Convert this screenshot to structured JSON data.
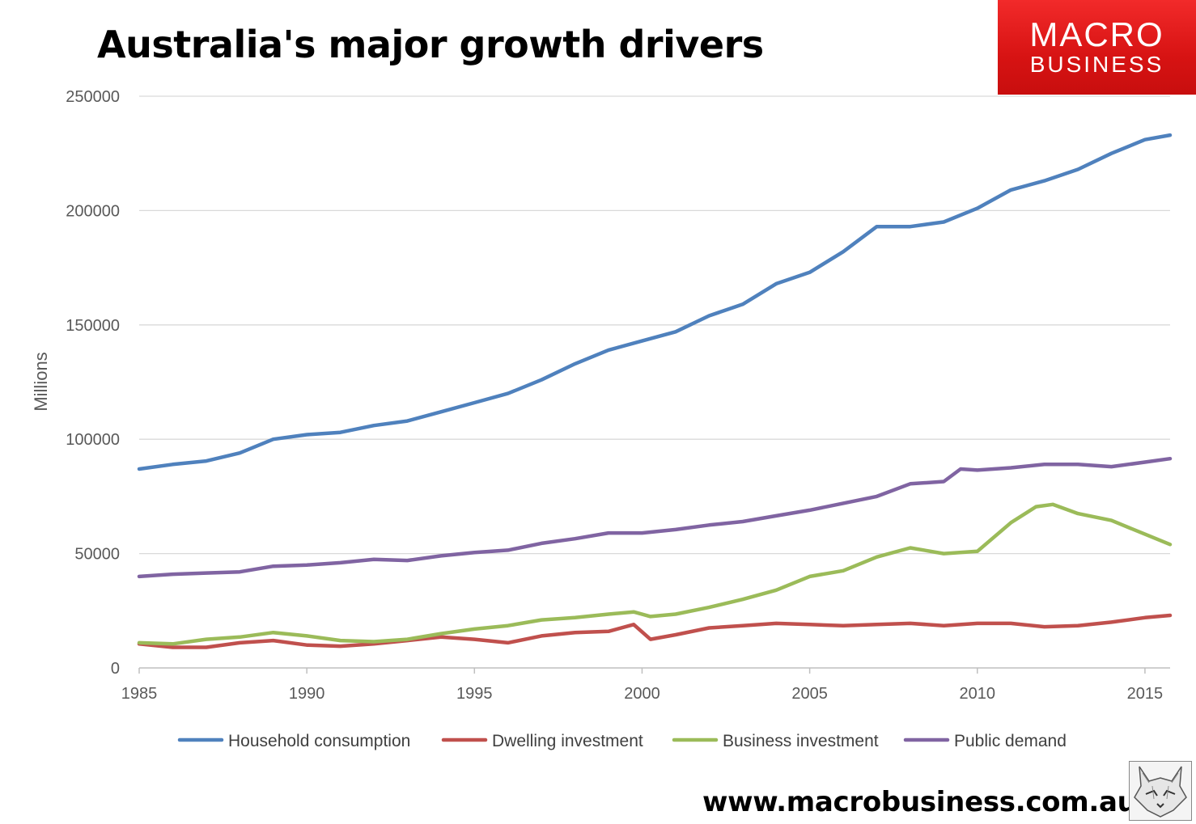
{
  "title": "Australia's major growth drivers",
  "brand": {
    "line1": "MACRO",
    "line2": "BUSINESS"
  },
  "website": "www.macrobusiness.com.au",
  "chart_data": {
    "type": "line",
    "title": "Australia's major growth drivers",
    "xlabel": "",
    "ylabel": "Millions",
    "xlim": [
      1985,
      2015.75
    ],
    "ylim": [
      0,
      250000
    ],
    "x_ticks": [
      1985,
      1990,
      1995,
      2000,
      2005,
      2010,
      2015
    ],
    "y_ticks": [
      0,
      50000,
      100000,
      150000,
      200000,
      250000
    ],
    "grid": true,
    "legend_position": "bottom",
    "series": [
      {
        "name": "Household consumption",
        "color": "#4f81bd",
        "points": [
          [
            1985,
            87000
          ],
          [
            1986,
            89000
          ],
          [
            1987,
            90500
          ],
          [
            1988,
            94000
          ],
          [
            1989,
            100000
          ],
          [
            1990,
            102000
          ],
          [
            1991,
            103000
          ],
          [
            1992,
            106000
          ],
          [
            1993,
            108000
          ],
          [
            1994,
            112000
          ],
          [
            1995,
            116000
          ],
          [
            1996,
            120000
          ],
          [
            1997,
            126000
          ],
          [
            1998,
            133000
          ],
          [
            1999,
            139000
          ],
          [
            2000,
            143000
          ],
          [
            2001,
            147000
          ],
          [
            2002,
            154000
          ],
          [
            2003,
            159000
          ],
          [
            2004,
            168000
          ],
          [
            2005,
            173000
          ],
          [
            2006,
            182000
          ],
          [
            2007,
            193000
          ],
          [
            2008,
            193000
          ],
          [
            2009,
            195000
          ],
          [
            2010,
            201000
          ],
          [
            2011,
            209000
          ],
          [
            2012,
            213000
          ],
          [
            2013,
            218000
          ],
          [
            2014,
            225000
          ],
          [
            2015,
            231000
          ],
          [
            2015.75,
            233000
          ]
        ]
      },
      {
        "name": "Dwelling investment",
        "color": "#c0504d",
        "points": [
          [
            1985,
            10500
          ],
          [
            1986,
            9000
          ],
          [
            1987,
            9000
          ],
          [
            1988,
            11000
          ],
          [
            1989,
            12000
          ],
          [
            1990,
            10000
          ],
          [
            1991,
            9500
          ],
          [
            1992,
            10500
          ],
          [
            1993,
            12000
          ],
          [
            1994,
            13500
          ],
          [
            1995,
            12500
          ],
          [
            1996,
            11000
          ],
          [
            1997,
            14000
          ],
          [
            1998,
            15500
          ],
          [
            1999,
            16000
          ],
          [
            1999.75,
            19000
          ],
          [
            2000.25,
            12500
          ],
          [
            2001,
            14500
          ],
          [
            2002,
            17500
          ],
          [
            2003,
            18500
          ],
          [
            2004,
            19500
          ],
          [
            2005,
            19000
          ],
          [
            2006,
            18500
          ],
          [
            2007,
            19000
          ],
          [
            2008,
            19500
          ],
          [
            2009,
            18500
          ],
          [
            2010,
            19500
          ],
          [
            2011,
            19500
          ],
          [
            2012,
            18000
          ],
          [
            2013,
            18500
          ],
          [
            2014,
            20000
          ],
          [
            2015,
            22000
          ],
          [
            2015.75,
            23000
          ]
        ]
      },
      {
        "name": "Business investment",
        "color": "#9bbb59",
        "points": [
          [
            1985,
            11000
          ],
          [
            1986,
            10500
          ],
          [
            1987,
            12500
          ],
          [
            1988,
            13500
          ],
          [
            1989,
            15500
          ],
          [
            1990,
            14000
          ],
          [
            1991,
            12000
          ],
          [
            1992,
            11500
          ],
          [
            1993,
            12500
          ],
          [
            1994,
            15000
          ],
          [
            1995,
            17000
          ],
          [
            1996,
            18500
          ],
          [
            1997,
            21000
          ],
          [
            1998,
            22000
          ],
          [
            1999,
            23500
          ],
          [
            1999.75,
            24500
          ],
          [
            2000.25,
            22500
          ],
          [
            2001,
            23500
          ],
          [
            2002,
            26500
          ],
          [
            2003,
            30000
          ],
          [
            2004,
            34000
          ],
          [
            2005,
            40000
          ],
          [
            2006,
            42500
          ],
          [
            2007,
            48500
          ],
          [
            2008,
            52500
          ],
          [
            2009,
            50000
          ],
          [
            2010,
            51000
          ],
          [
            2011,
            63500
          ],
          [
            2011.75,
            70500
          ],
          [
            2012.25,
            71500
          ],
          [
            2013,
            67500
          ],
          [
            2014,
            64500
          ],
          [
            2015,
            58500
          ],
          [
            2015.75,
            54000
          ]
        ]
      },
      {
        "name": "Public demand",
        "color": "#8064a2",
        "points": [
          [
            1985,
            40000
          ],
          [
            1986,
            41000
          ],
          [
            1987,
            41500
          ],
          [
            1988,
            42000
          ],
          [
            1989,
            44500
          ],
          [
            1990,
            45000
          ],
          [
            1991,
            46000
          ],
          [
            1992,
            47500
          ],
          [
            1993,
            47000
          ],
          [
            1994,
            49000
          ],
          [
            1995,
            50500
          ],
          [
            1996,
            51500
          ],
          [
            1997,
            54500
          ],
          [
            1998,
            56500
          ],
          [
            1999,
            59000
          ],
          [
            2000,
            59000
          ],
          [
            2001,
            60500
          ],
          [
            2002,
            62500
          ],
          [
            2003,
            64000
          ],
          [
            2004,
            66500
          ],
          [
            2005,
            69000
          ],
          [
            2006,
            72000
          ],
          [
            2007,
            75000
          ],
          [
            2008,
            80500
          ],
          [
            2009,
            81500
          ],
          [
            2009.5,
            87000
          ],
          [
            2010,
            86500
          ],
          [
            2011,
            87500
          ],
          [
            2012,
            89000
          ],
          [
            2013,
            89000
          ],
          [
            2014,
            88000
          ],
          [
            2015,
            90000
          ],
          [
            2015.75,
            91500
          ]
        ]
      }
    ]
  }
}
